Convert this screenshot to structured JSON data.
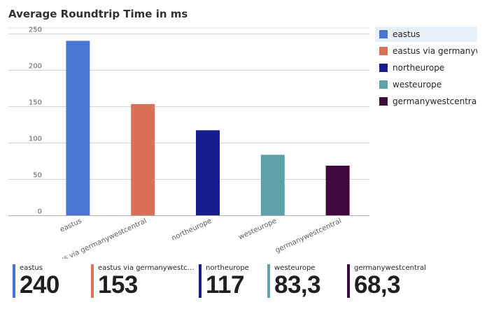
{
  "chart_data": {
    "type": "bar",
    "title": "Average Roundtrip Time in ms",
    "categories": [
      "eastus",
      "eastus via germanywestcentral",
      "northeurope",
      "westeurope",
      "germanywestcentral"
    ],
    "values": [
      240,
      153,
      117,
      83.3,
      68.3
    ],
    "colors": [
      "#4a76d1",
      "#d87155",
      "#161c8c",
      "#5ea1ab",
      "#3e0a3e"
    ],
    "yticks": [
      "0",
      "50",
      "100",
      "150",
      "200",
      "250"
    ],
    "ylim": [
      0,
      250
    ],
    "grid": true,
    "legend_position": "right",
    "legend": {
      "items": [
        "eastus",
        "eastus via germanyw...",
        "northeurope",
        "westeurope",
        "germanywestcentral"
      ],
      "selected": 0
    }
  },
  "tiles": [
    {
      "label": "eastus",
      "value": "240",
      "color": "#4a76d1"
    },
    {
      "label": "eastus via germanywestce...",
      "value": "153",
      "color": "#d87155"
    },
    {
      "label": "northeurope",
      "value": "117",
      "color": "#161c8c"
    },
    {
      "label": "westeurope",
      "value": "83,3",
      "color": "#5ea1ab"
    },
    {
      "label": "germanywestcentral",
      "value": "68,3",
      "color": "#3e0a3e"
    }
  ]
}
